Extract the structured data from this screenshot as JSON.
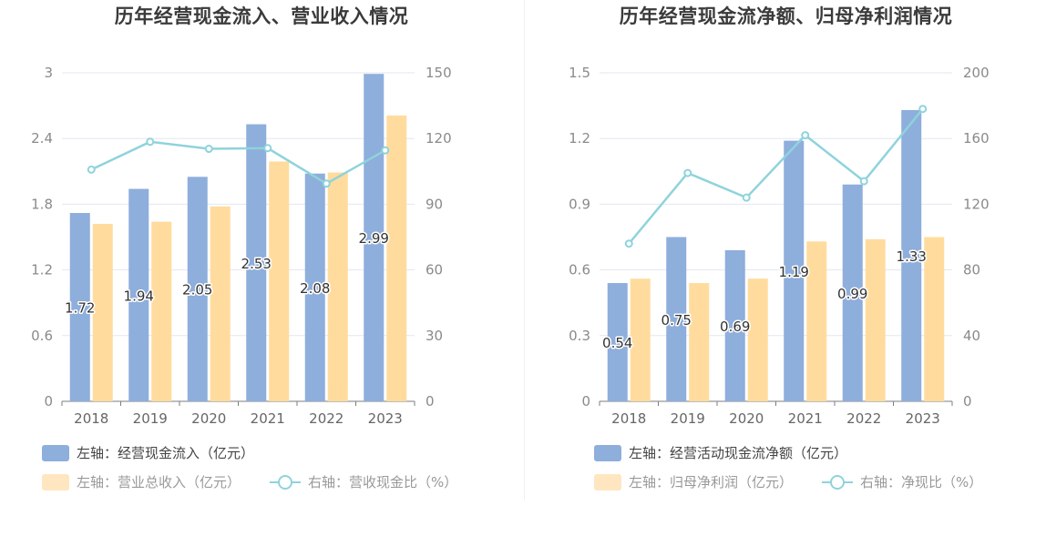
{
  "chart_data": [
    {
      "type": "bar",
      "title": "历年经营现金流入、营业收入情况",
      "categories": [
        "2018",
        "2019",
        "2020",
        "2021",
        "2022",
        "2023"
      ],
      "series": [
        {
          "name": "左轴：经营现金流入（亿元）",
          "axis": "left",
          "kind": "bar",
          "color": "#8eaedc",
          "values": [
            1.72,
            1.94,
            2.05,
            2.53,
            2.08,
            2.99
          ],
          "labels": [
            "1.72",
            "1.94",
            "2.05",
            "2.53",
            "2.08",
            "2.99"
          ]
        },
        {
          "name": "左轴：营业总收入（亿元）",
          "axis": "left",
          "kind": "bar",
          "color": "#ffdc9e",
          "values": [
            1.62,
            1.64,
            1.78,
            2.19,
            2.09,
            2.61
          ]
        },
        {
          "name": "右轴：营收现金比（%）",
          "axis": "right",
          "kind": "line",
          "color": "#8fd3dc",
          "values": [
            105.8,
            118.5,
            115.3,
            115.6,
            99.4,
            114.6
          ]
        }
      ],
      "left_axis": {
        "ylim": [
          0,
          3
        ],
        "ticks": [
          "0",
          "0.6",
          "1.2",
          "1.8",
          "2.4",
          "3"
        ]
      },
      "right_axis": {
        "ylim": [
          0,
          150
        ],
        "ticks": [
          "0",
          "30",
          "60",
          "90",
          "120",
          "150"
        ]
      },
      "grid": true,
      "legend_position": "bottom"
    },
    {
      "type": "bar",
      "title": "历年经营现金流净额、归母净利润情况",
      "categories": [
        "2018",
        "2019",
        "2020",
        "2021",
        "2022",
        "2023"
      ],
      "series": [
        {
          "name": "左轴：经营活动现金流净额（亿元）",
          "axis": "left",
          "kind": "bar",
          "color": "#8eaedc",
          "values": [
            0.54,
            0.75,
            0.69,
            1.19,
            0.99,
            1.33
          ],
          "labels": [
            "0.54",
            "0.75",
            "0.69",
            "1.19",
            "0.99",
            "1.33"
          ]
        },
        {
          "name": "左轴：归母净利润（亿元）",
          "axis": "left",
          "kind": "bar",
          "color": "#ffdc9e",
          "values": [
            0.56,
            0.54,
            0.56,
            0.73,
            0.74,
            0.75
          ]
        },
        {
          "name": "右轴：净现比（%）",
          "axis": "right",
          "kind": "line",
          "color": "#8fd3dc",
          "values": [
            96,
            139,
            124,
            162,
            134,
            178
          ]
        }
      ],
      "left_axis": {
        "ylim": [
          0,
          1.5
        ],
        "ticks": [
          "0",
          "0.3",
          "0.6",
          "0.9",
          "1.2",
          "1.5"
        ]
      },
      "right_axis": {
        "ylim": [
          0,
          200
        ],
        "ticks": [
          "0",
          "40",
          "80",
          "120",
          "160",
          "200"
        ]
      },
      "grid": true,
      "legend_position": "bottom"
    }
  ]
}
